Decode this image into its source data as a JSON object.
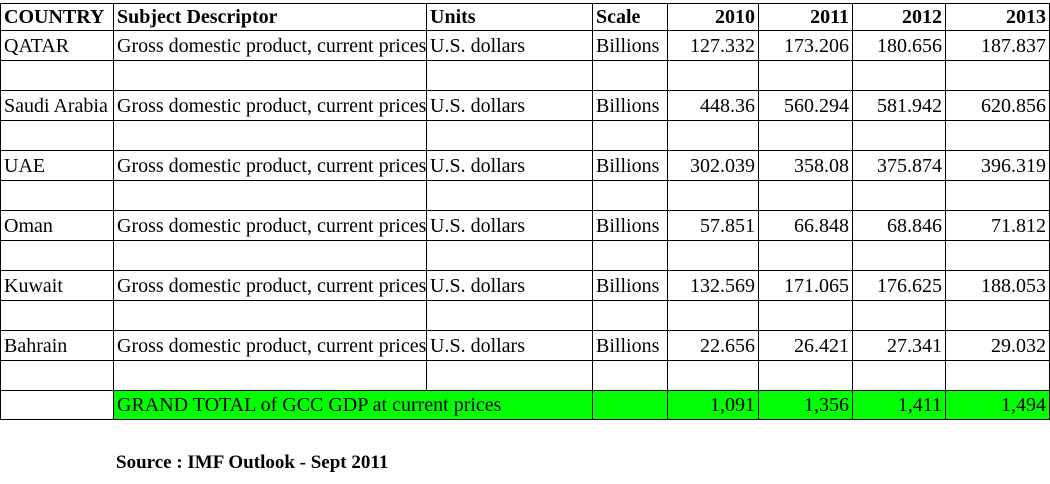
{
  "headers": [
    "COUNTRY",
    "Subject Descriptor",
    "Units",
    "Scale",
    "2010",
    "2011",
    "2012",
    "2013"
  ],
  "rows": [
    {
      "country": "QATAR",
      "descriptor": "Gross domestic product, current prices",
      "units": "U.S. dollars",
      "scale": "Billions",
      "values": [
        "127.332",
        "173.206",
        "180.656",
        "187.837"
      ]
    },
    {
      "country": "Saudi Arabia",
      "descriptor": "Gross domestic product, current prices",
      "units": "U.S. dollars",
      "scale": "Billions",
      "values": [
        "448.36",
        "560.294",
        "581.942",
        "620.856"
      ]
    },
    {
      "country": "UAE",
      "descriptor": "Gross domestic product, current prices",
      "units": "U.S. dollars",
      "scale": "Billions",
      "values": [
        "302.039",
        "358.08",
        "375.874",
        "396.319"
      ]
    },
    {
      "country": "Oman",
      "descriptor": "Gross domestic product, current prices",
      "units": "U.S. dollars",
      "scale": "Billions",
      "values": [
        "57.851",
        "66.848",
        "68.846",
        "71.812"
      ]
    },
    {
      "country": "Kuwait",
      "descriptor": "Gross domestic product, current prices",
      "units": "U.S. dollars",
      "scale": "Billions",
      "values": [
        "132.569",
        "171.065",
        "176.625",
        "188.053"
      ]
    },
    {
      "country": "Bahrain",
      "descriptor": "Gross domestic product, current prices",
      "units": "U.S. dollars",
      "scale": "Billions",
      "values": [
        "22.656",
        "26.421",
        "27.341",
        "29.032"
      ]
    }
  ],
  "total": {
    "label": "GRAND TOTAL of GCC GDP at current prices",
    "values": [
      "1,091",
      "1,356",
      "1,411",
      "1,494"
    ],
    "highlight_color": "#00ff00"
  },
  "source": "Source : IMF Outlook - Sept 2011"
}
